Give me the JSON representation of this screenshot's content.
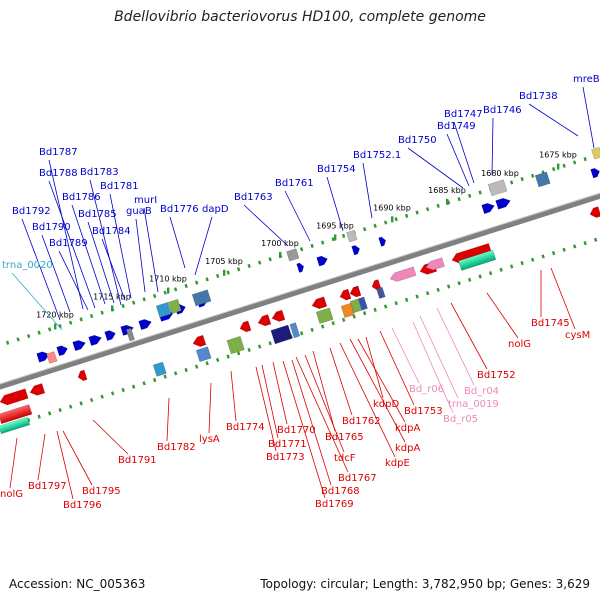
{
  "title": "Bdellovibrio bacteriovorus HD100, complete genome",
  "accession": "Accession: NC_005363",
  "summary": "Topology: circular; Length: 3,782,950 bp; Genes: 3,629",
  "colors": {
    "forward": "#0000cc",
    "reverse": "#dd0000",
    "rna_forward": "#33aacc",
    "rna_reverse": "#ee88bb",
    "backbone": "#808080",
    "ticks": "#339933"
  },
  "ticks": [
    {
      "label": "1675 kbp"
    },
    {
      "label": "1680 kbp"
    },
    {
      "label": "1685 kbp"
    },
    {
      "label": "1690 kbp"
    },
    {
      "label": "1695 kbp"
    },
    {
      "label": "1700 kbp"
    },
    {
      "label": "1705 kbp"
    },
    {
      "label": "1710 kbp"
    },
    {
      "label": "1715 kbp"
    },
    {
      "label": "1720 kbp"
    }
  ],
  "forward_labels": [
    "mreB",
    "Bd1738",
    "Bd1746",
    "Bd1747",
    "Bd1749",
    "Bd1750",
    "Bd1752.1",
    "Bd1754",
    "Bd1761",
    "Bd1763",
    "dapD",
    "Bd1776",
    "murI",
    "guaB",
    "Bd1781",
    "Bd1783",
    "Bd1784",
    "Bd1785",
    "Bd1786",
    "Bd1788",
    "Bd1787",
    "Bd1789",
    "Bd1790",
    "Bd1792",
    "trna_0020"
  ],
  "reverse_labels": [
    "cysM",
    "Bd1745",
    "nolG",
    "Bd1752",
    "Bd_r04",
    "trna_0019",
    "Bd_r05",
    "Bd_r06",
    "Bd1753",
    "kdpD",
    "kdpA",
    "kdpA",
    "kdpE",
    "Bd1762",
    "Bd1765",
    "tdcF",
    "Bd1767",
    "Bd1768",
    "Bd1769",
    "Bd1770",
    "Bd1771",
    "Bd1773",
    "Bd1774",
    "lysA",
    "Bd1782",
    "Bd1791",
    "Bd1795",
    "Bd1796",
    "Bd1797",
    "nolG"
  ]
}
